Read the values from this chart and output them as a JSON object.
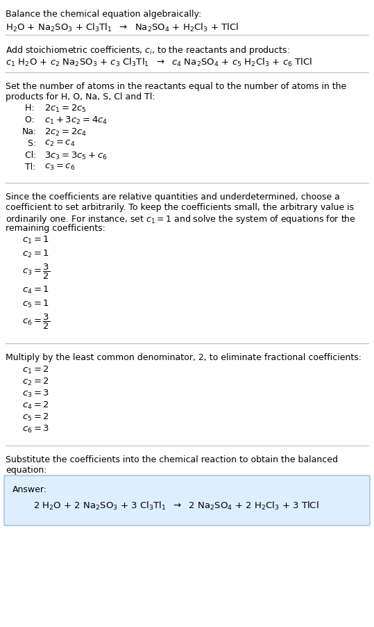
{
  "sec1_head": "Balance the chemical equation algebraically:",
  "sec1_eq": "H$_2$O + Na$_2$SO$_3$ + Cl$_3$Tl$_1$  $\\rightarrow$  Na$_2$SO$_4$ + H$_2$Cl$_3$ + TlCl",
  "sec2_head": "Add stoichiometric coefficients, $c_i$, to the reactants and products:",
  "sec2_eq": "$c_1$ H$_2$O + $c_2$ Na$_2$SO$_3$ + $c_3$ Cl$_3$Tl$_1$  $\\rightarrow$  $c_4$ Na$_2$SO$_4$ + $c_5$ H$_2$Cl$_3$ + $c_6$ TlCl",
  "sec3_head1": "Set the number of atoms in the reactants equal to the number of atoms in the",
  "sec3_head2": "products for H, O, Na, S, Cl and Tl:",
  "sec3_eqs": [
    [
      " H:",
      "$2c_1 = 2c_5$"
    ],
    [
      " O:",
      "$c_1 + 3c_2 = 4c_4$"
    ],
    [
      "Na:",
      "$2c_2 = 2c_4$"
    ],
    [
      "  S:",
      "$c_2 = c_4$"
    ],
    [
      " Cl:",
      "$3c_3 = 3c_5 + c_6$"
    ],
    [
      " Tl:",
      "$c_3 = c_6$"
    ]
  ],
  "sec4_head1": "Since the coefficients are relative quantities and underdetermined, choose a",
  "sec4_head2": "coefficient to set arbitrarily. To keep the coefficients small, the arbitrary value is",
  "sec4_head3": "ordinarily one. For instance, set $c_1 = 1$ and solve the system of equations for the",
  "sec4_head4": "remaining coefficients:",
  "sec4_eqs": [
    "$c_1 = 1$",
    "$c_2 = 1$",
    "$c_3 = \\dfrac{3}{2}$",
    "$c_4 = 1$",
    "$c_5 = 1$",
    "$c_6 = \\dfrac{3}{2}$"
  ],
  "sec5_head": "Multiply by the least common denominator, 2, to eliminate fractional coefficients:",
  "sec5_eqs": [
    "$c_1 = 2$",
    "$c_2 = 2$",
    "$c_3 = 3$",
    "$c_4 = 2$",
    "$c_5 = 2$",
    "$c_6 = 3$"
  ],
  "sec6_head1": "Substitute the coefficients into the chemical reaction to obtain the balanced",
  "sec6_head2": "equation:",
  "sec6_answer_label": "Answer:",
  "sec6_answer_eq": "2 H$_2$O + 2 Na$_2$SO$_3$ + 3 Cl$_3$Tl$_1$  $\\rightarrow$  2 Na$_2$SO$_4$ + 2 H$_2$Cl$_3$ + 3 TlCl",
  "bg_color": "#ffffff",
  "sep_color": "#bbbbbb",
  "answer_box_bg": "#ddeeff",
  "answer_box_edge": "#99bbdd",
  "fs_body": 9.0,
  "fs_eq": 9.5
}
